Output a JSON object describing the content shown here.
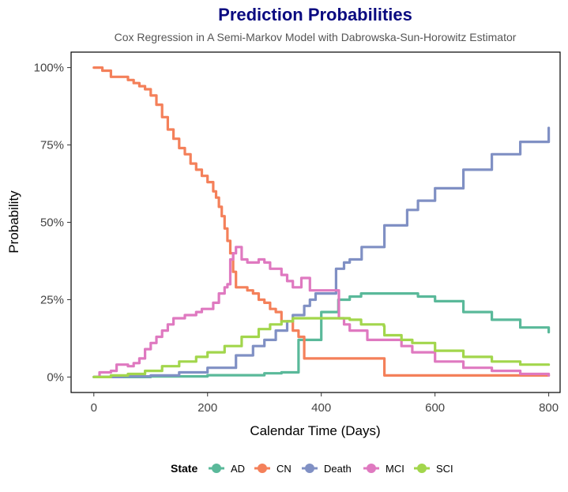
{
  "chart_data": {
    "type": "line",
    "title": "Prediction Probabilities",
    "subtitle": "Cox Regression in A Semi-Markov Model with Dabrowska-Sun-Horowitz Estimator",
    "xlabel": "Calendar Time (Days)",
    "ylabel": "Probability",
    "xlim": [
      -40,
      820
    ],
    "ylim": [
      -0.05,
      1.05
    ],
    "x_ticks": [
      0,
      200,
      400,
      600,
      800
    ],
    "x_tick_labels": [
      "0",
      "200",
      "400",
      "600",
      "800"
    ],
    "y_ticks": [
      0,
      0.25,
      0.5,
      0.75,
      1.0
    ],
    "y_tick_labels": [
      "0%",
      "25%",
      "50%",
      "75%",
      "100%"
    ],
    "legend_title": "State",
    "legend_position": "bottom",
    "series": [
      {
        "name": "AD",
        "color": "#5ab99a",
        "points": [
          [
            0,
            0
          ],
          [
            100,
            0.002
          ],
          [
            200,
            0.006
          ],
          [
            300,
            0.012
          ],
          [
            330,
            0.015
          ],
          [
            360,
            0.12
          ],
          [
            400,
            0.21
          ],
          [
            428,
            0.21
          ],
          [
            430,
            0.25
          ],
          [
            450,
            0.26
          ],
          [
            470,
            0.27
          ],
          [
            540,
            0.27
          ],
          [
            570,
            0.26
          ],
          [
            600,
            0.245
          ],
          [
            650,
            0.21
          ],
          [
            700,
            0.185
          ],
          [
            750,
            0.16
          ],
          [
            800,
            0.145
          ]
        ]
      },
      {
        "name": "CN",
        "color": "#f4805a",
        "points": [
          [
            0,
            1.0
          ],
          [
            15,
            0.99
          ],
          [
            30,
            0.97
          ],
          [
            60,
            0.96
          ],
          [
            70,
            0.95
          ],
          [
            80,
            0.94
          ],
          [
            90,
            0.93
          ],
          [
            100,
            0.91
          ],
          [
            110,
            0.88
          ],
          [
            120,
            0.84
          ],
          [
            130,
            0.8
          ],
          [
            140,
            0.77
          ],
          [
            150,
            0.74
          ],
          [
            160,
            0.72
          ],
          [
            170,
            0.69
          ],
          [
            180,
            0.67
          ],
          [
            190,
            0.65
          ],
          [
            200,
            0.63
          ],
          [
            210,
            0.6
          ],
          [
            215,
            0.58
          ],
          [
            220,
            0.55
          ],
          [
            225,
            0.52
          ],
          [
            230,
            0.48
          ],
          [
            235,
            0.44
          ],
          [
            240,
            0.4
          ],
          [
            245,
            0.34
          ],
          [
            250,
            0.29
          ],
          [
            255,
            0.29
          ],
          [
            270,
            0.28
          ],
          [
            280,
            0.27
          ],
          [
            290,
            0.25
          ],
          [
            300,
            0.24
          ],
          [
            310,
            0.22
          ],
          [
            320,
            0.21
          ],
          [
            330,
            0.18
          ],
          [
            350,
            0.15
          ],
          [
            360,
            0.13
          ],
          [
            370,
            0.06
          ],
          [
            380,
            0.06
          ],
          [
            510,
            0.06
          ],
          [
            511,
            0.005
          ],
          [
            800,
            0.005
          ]
        ]
      },
      {
        "name": "Death",
        "color": "#8090c4",
        "points": [
          [
            0,
            0
          ],
          [
            50,
            0.002
          ],
          [
            100,
            0.005
          ],
          [
            150,
            0.015
          ],
          [
            200,
            0.03
          ],
          [
            250,
            0.07
          ],
          [
            280,
            0.1
          ],
          [
            300,
            0.12
          ],
          [
            320,
            0.15
          ],
          [
            340,
            0.18
          ],
          [
            350,
            0.2
          ],
          [
            370,
            0.23
          ],
          [
            380,
            0.25
          ],
          [
            390,
            0.27
          ],
          [
            425,
            0.27
          ],
          [
            426,
            0.35
          ],
          [
            440,
            0.37
          ],
          [
            450,
            0.38
          ],
          [
            470,
            0.38
          ],
          [
            471,
            0.42
          ],
          [
            510,
            0.42
          ],
          [
            511,
            0.49
          ],
          [
            550,
            0.49
          ],
          [
            551,
            0.54
          ],
          [
            570,
            0.57
          ],
          [
            600,
            0.61
          ],
          [
            650,
            0.67
          ],
          [
            700,
            0.72
          ],
          [
            750,
            0.76
          ],
          [
            800,
            0.805
          ]
        ]
      },
      {
        "name": "MCI",
        "color": "#df79c0",
        "points": [
          [
            0,
            0
          ],
          [
            10,
            0.015
          ],
          [
            30,
            0.02
          ],
          [
            40,
            0.04
          ],
          [
            60,
            0.035
          ],
          [
            70,
            0.045
          ],
          [
            80,
            0.06
          ],
          [
            90,
            0.09
          ],
          [
            100,
            0.11
          ],
          [
            110,
            0.13
          ],
          [
            120,
            0.15
          ],
          [
            130,
            0.17
          ],
          [
            140,
            0.19
          ],
          [
            150,
            0.19
          ],
          [
            160,
            0.2
          ],
          [
            180,
            0.21
          ],
          [
            190,
            0.22
          ],
          [
            200,
            0.22
          ],
          [
            210,
            0.24
          ],
          [
            220,
            0.27
          ],
          [
            230,
            0.29
          ],
          [
            235,
            0.3
          ],
          [
            240,
            0.38
          ],
          [
            245,
            0.4
          ],
          [
            250,
            0.42
          ],
          [
            260,
            0.38
          ],
          [
            270,
            0.37
          ],
          [
            290,
            0.38
          ],
          [
            300,
            0.37
          ],
          [
            310,
            0.35
          ],
          [
            320,
            0.35
          ],
          [
            330,
            0.33
          ],
          [
            340,
            0.31
          ],
          [
            350,
            0.29
          ],
          [
            360,
            0.29
          ],
          [
            365,
            0.32
          ],
          [
            375,
            0.32
          ],
          [
            380,
            0.28
          ],
          [
            400,
            0.28
          ],
          [
            430,
            0.28
          ],
          [
            431,
            0.19
          ],
          [
            440,
            0.17
          ],
          [
            450,
            0.15
          ],
          [
            480,
            0.15
          ],
          [
            481,
            0.12
          ],
          [
            540,
            0.12
          ],
          [
            541,
            0.1
          ],
          [
            560,
            0.08
          ],
          [
            600,
            0.05
          ],
          [
            650,
            0.03
          ],
          [
            700,
            0.02
          ],
          [
            750,
            0.01
          ],
          [
            800,
            0.005
          ]
        ]
      },
      {
        "name": "SCI",
        "color": "#a2d64c",
        "points": [
          [
            0,
            0
          ],
          [
            30,
            0.005
          ],
          [
            60,
            0.01
          ],
          [
            90,
            0.02
          ],
          [
            120,
            0.035
          ],
          [
            150,
            0.05
          ],
          [
            180,
            0.065
          ],
          [
            200,
            0.08
          ],
          [
            230,
            0.1
          ],
          [
            260,
            0.13
          ],
          [
            290,
            0.155
          ],
          [
            310,
            0.17
          ],
          [
            330,
            0.18
          ],
          [
            350,
            0.19
          ],
          [
            400,
            0.19
          ],
          [
            450,
            0.185
          ],
          [
            470,
            0.17
          ],
          [
            510,
            0.165
          ],
          [
            511,
            0.135
          ],
          [
            540,
            0.135
          ],
          [
            541,
            0.12
          ],
          [
            560,
            0.11
          ],
          [
            600,
            0.085
          ],
          [
            650,
            0.065
          ],
          [
            700,
            0.05
          ],
          [
            750,
            0.04
          ],
          [
            800,
            0.04
          ]
        ]
      }
    ]
  }
}
